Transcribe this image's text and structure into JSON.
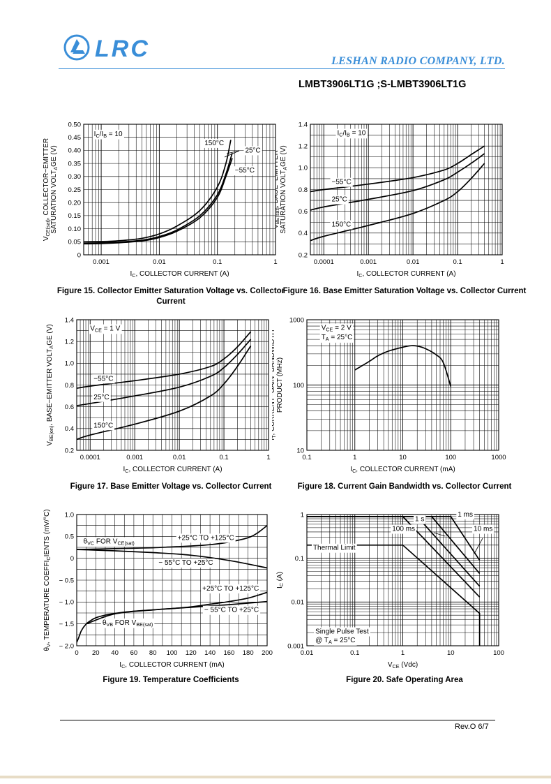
{
  "header": {
    "logo_text": "LRC",
    "company": "LESHAN RADIO COMPANY, LTD.",
    "part_number": "LMBT3906LT1G ;S-LMBT3906LT1G"
  },
  "footer": {
    "revision": "Rev.O  6/7"
  },
  "colors": {
    "accent": "#3a8ed8",
    "ink": "#000000"
  },
  "chart_data": [
    {
      "id": "fig15",
      "type": "line",
      "x_scale": "log",
      "caption": "Figure 15. Collector Emitter Saturation Voltage vs. Collector Current",
      "title": "",
      "xlabel": "IC, COLLECTOR CURRENT (A)",
      "ylabel_lines": [
        "VCE(sat), COLLECTOR−EMITTER",
        "SATURATION VOLTAGE (V)"
      ],
      "xlim": [
        0.0005,
        1
      ],
      "ylim": [
        0,
        0.5
      ],
      "x_ticks": [
        0.001,
        0.01,
        0.1,
        1
      ],
      "x_tick_labels": [
        "0.001",
        "0.01",
        "0.1",
        "1"
      ],
      "y_ticks": [
        0,
        0.05,
        0.1,
        0.15,
        0.2,
        0.25,
        0.3,
        0.35,
        0.4,
        0.45,
        0.5
      ],
      "y_tick_labels": [
        "0",
        "0.05",
        "0.10",
        "0.15",
        "0.20",
        "0.25",
        "0.30",
        "0.35",
        "0.40",
        "0.45",
        "0.50"
      ],
      "conditions": [
        {
          "text": "IC/IB = 10",
          "x": 0.00075,
          "y": 0.455
        }
      ],
      "series": [
        {
          "name": "150°C",
          "x": [
            0.0005,
            0.001,
            0.002,
            0.005,
            0.01,
            0.02,
            0.05,
            0.1,
            0.14,
            0.17
          ],
          "y": [
            0.05,
            0.051,
            0.054,
            0.063,
            0.08,
            0.11,
            0.17,
            0.26,
            0.35,
            0.44
          ]
        },
        {
          "name": "25°C",
          "x": [
            0.0005,
            0.001,
            0.002,
            0.005,
            0.01,
            0.02,
            0.05,
            0.1,
            0.14,
            0.18
          ],
          "y": [
            0.045,
            0.046,
            0.049,
            0.056,
            0.07,
            0.095,
            0.15,
            0.23,
            0.31,
            0.39
          ]
        },
        {
          "name": "−55°C",
          "x": [
            0.0005,
            0.001,
            0.002,
            0.005,
            0.01,
            0.02,
            0.05,
            0.1,
            0.14,
            0.18
          ],
          "y": [
            0.042,
            0.043,
            0.046,
            0.053,
            0.066,
            0.09,
            0.142,
            0.22,
            0.3,
            0.37
          ]
        }
      ],
      "annotations": [
        {
          "text": "150°C",
          "x": 0.06,
          "y": 0.42
        },
        {
          "text": "25°C",
          "x": 0.3,
          "y": 0.392
        },
        {
          "text": "−55°C",
          "x": 0.2,
          "y": 0.315
        }
      ]
    },
    {
      "id": "fig16",
      "type": "line",
      "x_scale": "log",
      "caption": "Figure 16. Base Emitter Saturation Voltage vs. Collector Current",
      "title": "",
      "xlabel": "IC, COLLECTOR CURRENT (A)",
      "ylabel_lines": [
        "VBE(sat), BASE−EMITTER",
        "SATURATION VOLTAGE (V)"
      ],
      "xlim": [
        5e-05,
        1
      ],
      "ylim": [
        0.2,
        1.4
      ],
      "x_ticks": [
        0.0001,
        0.001,
        0.01,
        0.1,
        1
      ],
      "x_tick_labels": [
        "0.0001",
        "0.001",
        "0.01",
        "0.1",
        "1"
      ],
      "y_ticks": [
        0.2,
        0.4,
        0.6,
        0.8,
        1.0,
        1.2,
        1.4
      ],
      "y_tick_labels": [
        "0.2",
        "0.4",
        "0.6",
        "0.8",
        "1.0",
        "1.2",
        "1.4"
      ],
      "conditions": [
        {
          "text": "IC/IB = 10",
          "x": 0.0002,
          "y": 1.3
        }
      ],
      "series": [
        {
          "name": "−55°C",
          "x": [
            5e-05,
            0.0001,
            0.001,
            0.01,
            0.05,
            0.1,
            0.2,
            0.4
          ],
          "y": [
            0.78,
            0.8,
            0.85,
            0.91,
            0.98,
            1.04,
            1.12,
            1.2
          ]
        },
        {
          "name": "25°C",
          "x": [
            5e-05,
            0.0001,
            0.001,
            0.01,
            0.05,
            0.1,
            0.2,
            0.4
          ],
          "y": [
            0.61,
            0.64,
            0.71,
            0.79,
            0.89,
            0.96,
            1.04,
            1.13
          ]
        },
        {
          "name": "150°C",
          "x": [
            5e-05,
            0.0001,
            0.001,
            0.01,
            0.05,
            0.1,
            0.2,
            0.4
          ],
          "y": [
            0.33,
            0.37,
            0.47,
            0.58,
            0.7,
            0.78,
            0.9,
            1.04
          ]
        }
      ],
      "annotations": [
        {
          "text": "−55°C",
          "x": 0.00015,
          "y": 0.85
        },
        {
          "text": "25°C",
          "x": 0.00015,
          "y": 0.69
        },
        {
          "text": "150°C",
          "x": 0.00015,
          "y": 0.46
        }
      ]
    },
    {
      "id": "fig17",
      "type": "line",
      "x_scale": "log",
      "caption": "Figure 17. Base Emitter Voltage vs. Collector Current",
      "title": "",
      "xlabel": "IC, COLLECTOR CURRENT (A)",
      "ylabel_lines": [
        "VBE(on), BASE−EMITTER VOLTAGE (V)"
      ],
      "xlim": [
        5e-05,
        1
      ],
      "ylim": [
        0.2,
        1.4
      ],
      "x_ticks": [
        0.0001,
        0.001,
        0.01,
        0.1,
        1
      ],
      "x_tick_labels": [
        "0.0001",
        "0.001",
        "0.01",
        "0.1",
        "1"
      ],
      "y_ticks": [
        0.2,
        0.4,
        0.6,
        0.8,
        1.0,
        1.2,
        1.4
      ],
      "y_tick_labels": [
        "0.2",
        "0.4",
        "0.6",
        "0.8",
        "1.0",
        "1.2",
        "1.4"
      ],
      "conditions": [
        {
          "text": "VCE = 1 V",
          "x": 0.0001,
          "y": 1.3
        }
      ],
      "series": [
        {
          "name": "−55°C",
          "x": [
            5e-05,
            0.0001,
            0.001,
            0.01,
            0.05,
            0.1,
            0.2,
            0.4
          ],
          "y": [
            0.77,
            0.79,
            0.84,
            0.9,
            0.97,
            1.04,
            1.15,
            1.29
          ]
        },
        {
          "name": "25°C",
          "x": [
            5e-05,
            0.0001,
            0.001,
            0.01,
            0.05,
            0.1,
            0.2,
            0.4
          ],
          "y": [
            0.61,
            0.63,
            0.7,
            0.78,
            0.88,
            0.96,
            1.08,
            1.22
          ]
        },
        {
          "name": "150°C",
          "x": [
            5e-05,
            0.0001,
            0.001,
            0.01,
            0.05,
            0.1,
            0.2,
            0.4
          ],
          "y": [
            0.3,
            0.34,
            0.44,
            0.56,
            0.7,
            0.81,
            0.97,
            1.16
          ]
        }
      ],
      "annotations": [
        {
          "text": "−55°C",
          "x": 0.00012,
          "y": 0.84
        },
        {
          "text": "25°C",
          "x": 0.00012,
          "y": 0.67
        },
        {
          "text": "150°C",
          "x": 0.00012,
          "y": 0.41
        }
      ]
    },
    {
      "id": "fig18",
      "type": "line",
      "x_scale": "log",
      "y_scale": "log",
      "caption": "Figure 18. Current Gain Bandwidth vs. Collector Current",
      "title": "",
      "xlabel": "IC, COLLECTOR CURRENT (mA)",
      "ylabel_lines": [
        "fT, CURRENT−GAIN−BANDWIDTH",
        "PRODUCT (MHz)"
      ],
      "xlim": [
        0.1,
        1000
      ],
      "ylim": [
        10,
        1000
      ],
      "x_ticks": [
        0.1,
        1,
        10,
        100,
        1000
      ],
      "x_tick_labels": [
        "0.1",
        "1",
        "10",
        "100",
        "1000"
      ],
      "y_ticks": [
        10,
        100,
        1000
      ],
      "y_tick_labels": [
        "10",
        "100",
        "1000"
      ],
      "conditions": [
        {
          "text": "VCE = 2 V",
          "x": 0.2,
          "y": 700
        },
        {
          "text": "TA = 25°C",
          "x": 0.2,
          "y": 500
        }
      ],
      "series": [
        {
          "name": "",
          "x": [
            1,
            2,
            3,
            5,
            10,
            15,
            20,
            30,
            50,
            70,
            100
          ],
          "y": [
            170,
            230,
            280,
            330,
            380,
            400,
            395,
            360,
            290,
            220,
            95
          ]
        }
      ],
      "annotations": []
    },
    {
      "id": "fig19",
      "type": "line",
      "x_scale": "linear",
      "caption": "Figure 19. Temperature Coefficients",
      "title": "",
      "xlabel": "IC, COLLECTOR CURRENT (mA)",
      "ylabel_lines": [
        "θV, TEMPERATURE COEFFICIENTS (mV/°C)"
      ],
      "xlim": [
        0,
        200
      ],
      "ylim": [
        -2.0,
        1.0
      ],
      "x_ticks": [
        0,
        20,
        40,
        60,
        80,
        100,
        120,
        140,
        160,
        180,
        200
      ],
      "x_tick_labels": [
        "0",
        "20",
        "40",
        "60",
        "80",
        "100",
        "120",
        "140",
        "160",
        "180",
        "200"
      ],
      "y_ticks": [
        -2.0,
        -1.5,
        -1.0,
        -0.5,
        0,
        0.5,
        1.0
      ],
      "y_tick_labels": [
        "− 2.0",
        "− 1.5",
        "− 1.0",
        "− 0.5",
        "0",
        "0.5",
        "1.0"
      ],
      "conditions": [],
      "series": [
        {
          "name": "θVC FOR VCE(sat) +25°C TO +125°C",
          "x": [
            0,
            20,
            40,
            60,
            80,
            100,
            120,
            140,
            160,
            180,
            190,
            200
          ],
          "y": [
            0.2,
            0.21,
            0.22,
            0.23,
            0.24,
            0.26,
            0.28,
            0.31,
            0.37,
            0.47,
            0.58,
            0.75
          ]
        },
        {
          "name": "θVC FOR VCE(sat) −55°C TO +25°C",
          "x": [
            0,
            40,
            80,
            120,
            160,
            200
          ],
          "y": [
            0.2,
            0.17,
            0.13,
            0.07,
            -0.05,
            -0.22
          ]
        },
        {
          "name": "θVB FOR VBE(sat) +25°C TO +125°C",
          "x": [
            0,
            2,
            5,
            10,
            15,
            20,
            30,
            40,
            60,
            80,
            100,
            120,
            140,
            160,
            180,
            200
          ],
          "y": [
            -1.92,
            -1.82,
            -1.65,
            -1.5,
            -1.42,
            -1.36,
            -1.3,
            -1.26,
            -1.21,
            -1.18,
            -1.15,
            -1.11,
            -1.05,
            -0.99,
            -0.91,
            -0.78
          ]
        },
        {
          "name": "θVB FOR VBE(sat) −55°C TO +25°C",
          "x": [
            10,
            40,
            80,
            120,
            160,
            200
          ],
          "y": [
            -1.5,
            -1.27,
            -1.18,
            -1.12,
            -1.06,
            -0.99
          ]
        }
      ],
      "annotations": [
        {
          "text": "θVC FOR VCE(sat)",
          "x": 7,
          "y": 0.34
        },
        {
          "text": "+25°C TO +125°C",
          "x": 106,
          "y": 0.42
        },
        {
          "text": "− 55°C TO +25°C",
          "x": 86,
          "y": -0.15
        },
        {
          "text": "+25°C TO +125°C",
          "x": 132,
          "y": -0.74
        },
        {
          "text": "− 55°C TO +25°C",
          "x": 134,
          "y": -1.23
        },
        {
          "text": "θVB FOR VBE(sat)",
          "x": 27,
          "y": -1.52
        }
      ]
    },
    {
      "id": "fig20",
      "type": "line",
      "x_scale": "log",
      "y_scale": "log",
      "caption": "Figure 20. Safe Operating Area",
      "title": "",
      "xlabel": "VCE (Vdc)",
      "ylabel_lines": [
        "IC (A)"
      ],
      "xlim": [
        0.01,
        100
      ],
      "ylim": [
        0.001,
        1
      ],
      "x_ticks": [
        0.01,
        0.1,
        1,
        10,
        100
      ],
      "x_tick_labels": [
        "0.01",
        "0.1",
        "1",
        "10",
        "100"
      ],
      "y_ticks": [
        0.001,
        0.01,
        0.1,
        1
      ],
      "y_tick_labels": [
        "0.001",
        "0.01",
        "0.1",
        "1"
      ],
      "conditions": [
        {
          "text": "Single Pulse Test",
          "x": 0.015,
          "y": 0.0019
        },
        {
          "text": "@ TA = 25°C",
          "x": 0.015,
          "y": 0.0012
        }
      ],
      "series": [
        {
          "name": "Thermal Limit",
          "x": [
            0.01,
            1,
            40,
            40
          ],
          "y": [
            0.2,
            0.2,
            0.0055,
            0.001
          ]
        },
        {
          "name": "100 ms",
          "x": [
            0.01,
            1,
            40
          ],
          "y": [
            0.9,
            0.9,
            0.013
          ]
        },
        {
          "name": "1 s",
          "x": [
            0.01,
            2,
            40
          ],
          "y": [
            0.9,
            0.9,
            0.023
          ]
        },
        {
          "name": "10 ms",
          "x": [
            0.01,
            4,
            40
          ],
          "y": [
            0.9,
            0.9,
            0.045
          ]
        },
        {
          "name": "1 ms",
          "x": [
            0.01,
            10,
            40
          ],
          "y": [
            0.9,
            0.9,
            0.09
          ]
        }
      ],
      "annotations": [
        {
          "text": "Thermal Limit",
          "x": 0.0135,
          "y": 0.155
        },
        {
          "text": "100 ms",
          "x": 0.6,
          "y": 0.42
        },
        {
          "text": "1 s",
          "x": 1.8,
          "y": 0.7
        },
        {
          "text": "10 ms",
          "x": 30,
          "y": 0.42
        },
        {
          "text": "1 ms",
          "x": 14,
          "y": 0.9
        }
      ]
    }
  ]
}
